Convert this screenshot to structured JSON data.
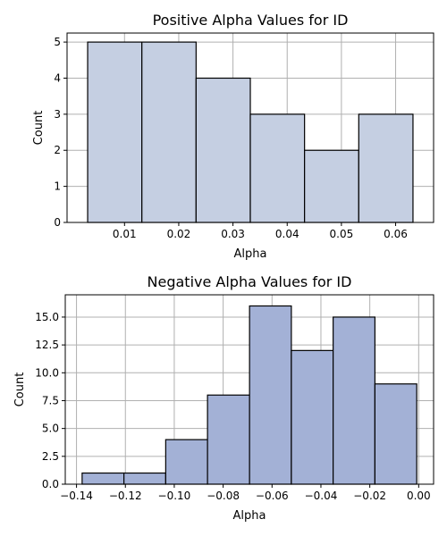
{
  "chart_data": [
    {
      "type": "bar",
      "title": "Positive Alpha Values for ID",
      "xlabel": "Alpha",
      "ylabel": "Count",
      "bin_edges": [
        0.0032,
        0.0132,
        0.0232,
        0.0332,
        0.0432,
        0.0532,
        0.0632
      ],
      "values": [
        5,
        5,
        4,
        3,
        2,
        3
      ],
      "xlim": [
        -0.0006,
        0.067
      ],
      "ylim": [
        0,
        5.25
      ],
      "xticks": [
        0.01,
        0.02,
        0.03,
        0.04,
        0.05,
        0.06
      ],
      "xtick_labels": [
        "0.01",
        "0.02",
        "0.03",
        "0.04",
        "0.05",
        "0.06"
      ],
      "yticks": [
        0,
        1,
        2,
        3,
        4,
        5
      ],
      "ytick_labels": [
        "0",
        "1",
        "2",
        "3",
        "4",
        "5"
      ],
      "grid": true,
      "bar_color": "#c5cfe2"
    },
    {
      "type": "bar",
      "title": "Negative Alpha Values for ID",
      "xlabel": "Alpha",
      "ylabel": "Count",
      "bin_edges": [
        -0.1377,
        -0.1206,
        -0.1035,
        -0.0864,
        -0.0692,
        -0.0521,
        -0.035,
        -0.0179,
        -0.0008
      ],
      "values": [
        1,
        1,
        4,
        8,
        16,
        12,
        15,
        9
      ],
      "xlim": [
        -0.1446,
        0.0061
      ],
      "ylim": [
        0,
        17.0
      ],
      "xticks": [
        -0.14,
        -0.12,
        -0.1,
        -0.08,
        -0.06,
        -0.04,
        -0.02,
        0.0
      ],
      "xtick_labels": [
        "−0.14",
        "−0.12",
        "−0.10",
        "−0.08",
        "−0.06",
        "−0.04",
        "−0.02",
        "0.00"
      ],
      "yticks": [
        0,
        2.5,
        5,
        7.5,
        10,
        12.5,
        15
      ],
      "ytick_labels": [
        "0.0",
        "2.5",
        "5.0",
        "7.5",
        "10.0",
        "12.5",
        "15.0"
      ],
      "grid": true,
      "bar_color": "#a3b1d6"
    }
  ]
}
